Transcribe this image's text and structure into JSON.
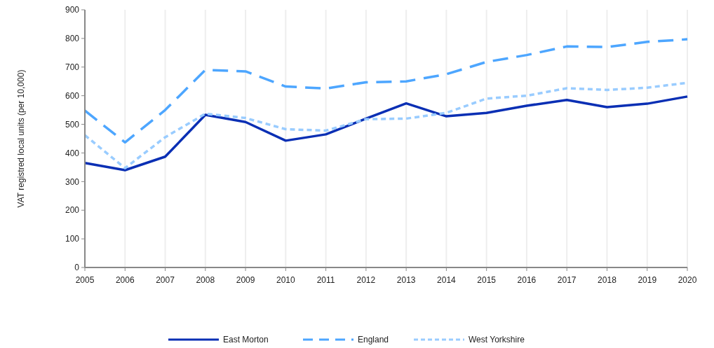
{
  "chart_data": {
    "type": "line",
    "ylabel": "VAT registred local units (per 10,000)",
    "categories": [
      "2005",
      "2006",
      "2007",
      "2008",
      "2009",
      "2010",
      "2011",
      "2012",
      "2013",
      "2014",
      "2015",
      "2016",
      "2017",
      "2018",
      "2019",
      "2020"
    ],
    "series": [
      {
        "name": "East Morton",
        "color": "#0a2fb4",
        "line_style": "solid",
        "values": [
          365,
          340,
          387,
          533,
          508,
          443,
          465,
          520,
          573,
          528,
          540,
          565,
          585,
          560,
          572,
          597
        ]
      },
      {
        "name": "England",
        "color": "#4da6ff",
        "line_style": "dashed",
        "values": [
          548,
          437,
          550,
          690,
          685,
          632,
          625,
          647,
          650,
          675,
          718,
          742,
          772,
          770,
          788,
          797
        ]
      },
      {
        "name": "West Yorkshire",
        "color": "#99ccff",
        "line_style": "dotted",
        "values": [
          462,
          347,
          455,
          537,
          522,
          483,
          478,
          518,
          520,
          540,
          590,
          600,
          626,
          620,
          628,
          645
        ]
      }
    ],
    "ylim": [
      0,
      900
    ],
    "yticks": [
      0,
      100,
      200,
      300,
      400,
      500,
      600,
      700,
      800,
      900
    ],
    "grid": "x",
    "legend": "bottom",
    "marker": "none"
  }
}
